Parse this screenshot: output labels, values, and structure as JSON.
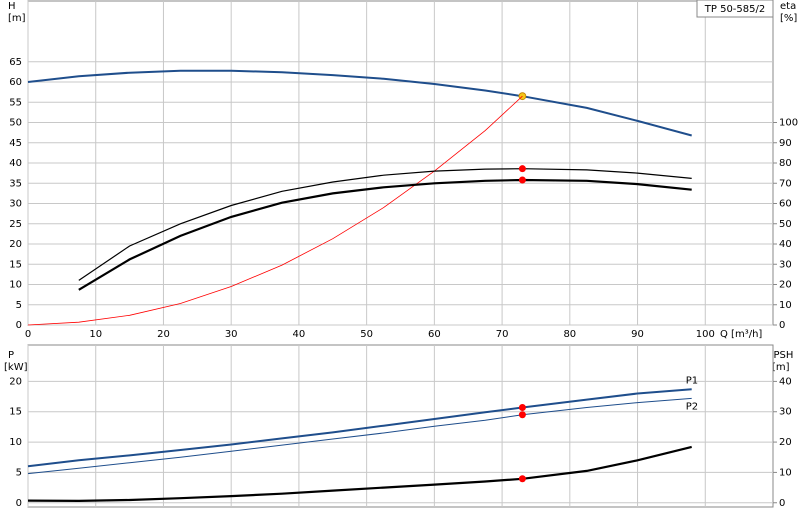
{
  "chart_data": [
    {
      "type": "line",
      "box_label": "TP 50-585/2",
      "y_label": "H",
      "y_unit": "[m]",
      "y2_label": "eta",
      "y2_unit": "[%]",
      "x_label": "Q [m³/h]",
      "x": [
        0,
        7.5,
        15,
        22.5,
        30,
        37.5,
        45,
        52.5,
        60,
        67.5,
        73,
        82.5,
        90,
        98
      ],
      "xlim": [
        0,
        110
      ],
      "xticks": [
        0,
        10,
        20,
        30,
        40,
        50,
        60,
        70,
        80,
        90,
        100
      ],
      "ylim": [
        0,
        80
      ],
      "yticks": [
        0,
        5,
        10,
        15,
        20,
        25,
        30,
        35,
        40,
        45,
        50,
        55,
        60,
        65
      ],
      "y2lim": [
        0,
        160
      ],
      "y2ticks": [
        0,
        10,
        20,
        30,
        40,
        50,
        60,
        70,
        80,
        90,
        100
      ],
      "grid": true,
      "series": [
        {
          "color": "#1f4e8c",
          "width": 2,
          "values": [
            60,
            61.4,
            62.3,
            62.8,
            62.8,
            62.4,
            61.7,
            60.8,
            59.5,
            57.9,
            56.5,
            53.6,
            50.4,
            46.8
          ],
          "marker": {
            "index": 10,
            "color": "#f5c518"
          }
        },
        {
          "color": "#ff0000",
          "width": 0.8,
          "values": [
            0,
            0.7,
            2.4,
            5.3,
            9.5,
            14.8,
            21.3,
            29,
            38,
            48,
            56.5,
            null,
            null,
            null
          ]
        },
        {
          "color": "#000000",
          "width": 1.2,
          "values": [
            null,
            11,
            19.5,
            25,
            29.5,
            33,
            35.3,
            37,
            38,
            38.5,
            38.6,
            38.3,
            37.5,
            36.2
          ],
          "marker": {
            "index": 10,
            "color": "#ff0000"
          }
        },
        {
          "color": "#000000",
          "width": 2.2,
          "values": [
            null,
            8.7,
            16.2,
            22,
            26.7,
            30.2,
            32.5,
            34,
            35,
            35.6,
            35.8,
            35.6,
            34.8,
            33.4
          ],
          "marker": {
            "index": 10,
            "color": "#ff0000"
          }
        }
      ]
    },
    {
      "type": "line",
      "y_label": "P",
      "y_unit": "[kW]",
      "y2_label": "NPSH",
      "y2_unit": "[m]",
      "x": [
        0,
        7.5,
        15,
        22.5,
        30,
        37.5,
        45,
        52.5,
        60,
        67.5,
        73,
        82.5,
        90,
        98
      ],
      "xlim": [
        0,
        110
      ],
      "ylim": [
        -0.7,
        26
      ],
      "yticks": [
        0,
        5,
        10,
        15,
        20
      ],
      "y2lim": [
        -1.4,
        52
      ],
      "y2ticks": [
        0,
        10,
        20,
        30,
        40
      ],
      "grid": true,
      "series": [
        {
          "name": "P1",
          "color": "#1f4e8c",
          "width": 2,
          "values": [
            6,
            7,
            7.8,
            8.7,
            9.6,
            10.6,
            11.6,
            12.7,
            13.8,
            14.9,
            15.7,
            17,
            18,
            18.7
          ],
          "marker": {
            "index": 10,
            "color": "#ff0000"
          }
        },
        {
          "name": "P2",
          "color": "#1f4e8c",
          "width": 1,
          "values": [
            4.8,
            5.7,
            6.6,
            7.5,
            8.5,
            9.5,
            10.5,
            11.5,
            12.6,
            13.6,
            14.5,
            15.7,
            16.5,
            17.2
          ],
          "marker": {
            "index": 10,
            "color": "#ff0000"
          }
        },
        {
          "color": "#000000",
          "width": 2.2,
          "axis": "y2",
          "values": [
            0.7,
            0.6,
            0.9,
            1.5,
            2.2,
            3,
            4,
            5,
            6,
            7,
            7.9,
            10.5,
            14,
            18.4
          ],
          "marker": {
            "index": 10,
            "color": "#ff0000"
          }
        }
      ]
    }
  ]
}
